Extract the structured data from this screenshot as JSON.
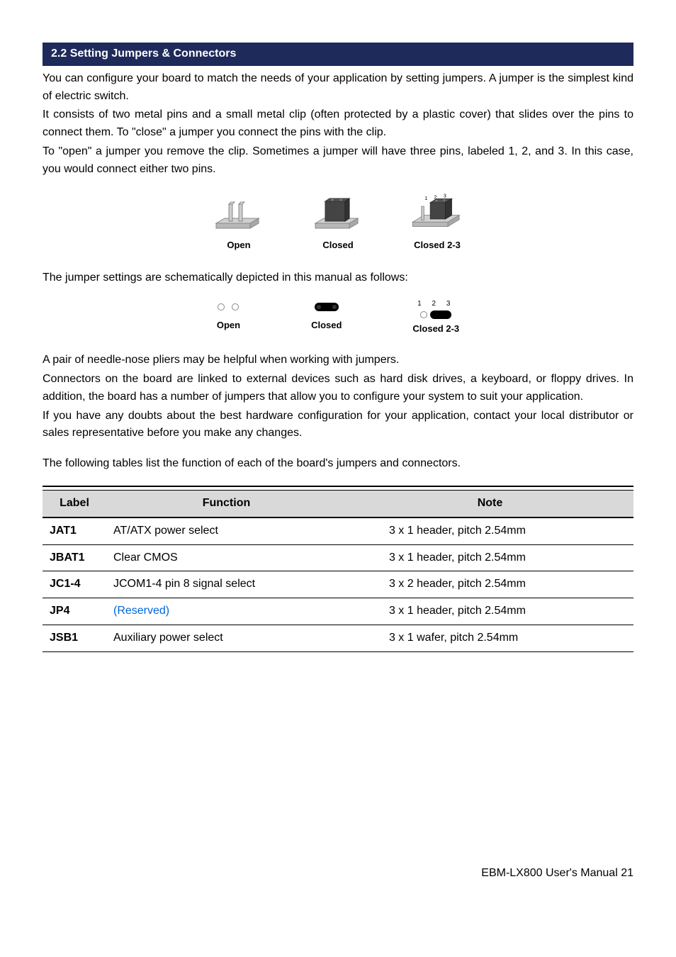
{
  "header": {
    "title": "2.2 Setting Jumpers & Connectors"
  },
  "intro": {
    "p1": "You can configure your board to match the needs of your application by setting jumpers. A jumper is the simplest kind of electric switch.",
    "p2": "It consists of two metal pins and a small metal clip (often protected by a plastic cover) that slides over the pins to connect them. To \"close\" a jumper you connect the pins with the clip.",
    "p3": "To \"open\" a jumper you remove the clip. Sometimes a jumper will have three pins, labeled 1, 2, and 3. In this case, you would connect either two pins."
  },
  "diagram3d": {
    "open": {
      "label": "Open"
    },
    "closed": {
      "label": "Closed"
    },
    "closed23": {
      "label": "Closed 2-3",
      "nums": "1 2 3"
    }
  },
  "schematic_intro": "The jumper settings are schematically depicted in this manual as follows:",
  "schematic": {
    "open": {
      "label": "Open"
    },
    "closed": {
      "label": "Closed"
    },
    "closed23": {
      "label": "Closed 2-3",
      "nums": "1 2 3"
    }
  },
  "body": {
    "p4": "A pair of needle-nose pliers may be helpful when working with jumpers.",
    "p5": "Connectors on the board are linked to external devices such as hard disk drives, a keyboard, or floppy drives. In addition, the board has a number of jumpers that allow you to configure your system to suit your application.",
    "p6": "If you have any doubts about the best hardware configuration for your application, contact your local distributor or sales representative before you make any changes.",
    "p7": "The following tables list the function of each of the board's jumpers and connectors."
  },
  "table": {
    "headers": {
      "label": "Label",
      "fn": "Function",
      "type": "Note"
    },
    "rows": [
      {
        "label": "JAT1",
        "fn": "AT/ATX power select",
        "type": "3 x 1 header, pitch 2.54mm",
        "reserved": false
      },
      {
        "label": "JBAT1",
        "fn": "Clear CMOS",
        "type": "3 x 1 header, pitch 2.54mm",
        "reserved": false
      },
      {
        "label": "JC1-4",
        "fn": "JCOM1-4 pin 8 signal select",
        "type": "3 x 2 header, pitch 2.54mm",
        "reserved": false
      },
      {
        "label": "JP4",
        "fn": "(Reserved)",
        "type": "3 x 1 header, pitch 2.54mm",
        "reserved": true
      },
      {
        "label": "JSB1",
        "fn": "Auxiliary power select",
        "type": "3 x 1 wafer, pitch 2.54mm",
        "reserved": false
      }
    ]
  },
  "footer": {
    "text": "EBM-LX800  User's  Manual",
    "page": "21"
  },
  "colors": {
    "bar": "#1e2a5a",
    "headerbg": "#d9d9d9",
    "link": "#0066dd"
  }
}
